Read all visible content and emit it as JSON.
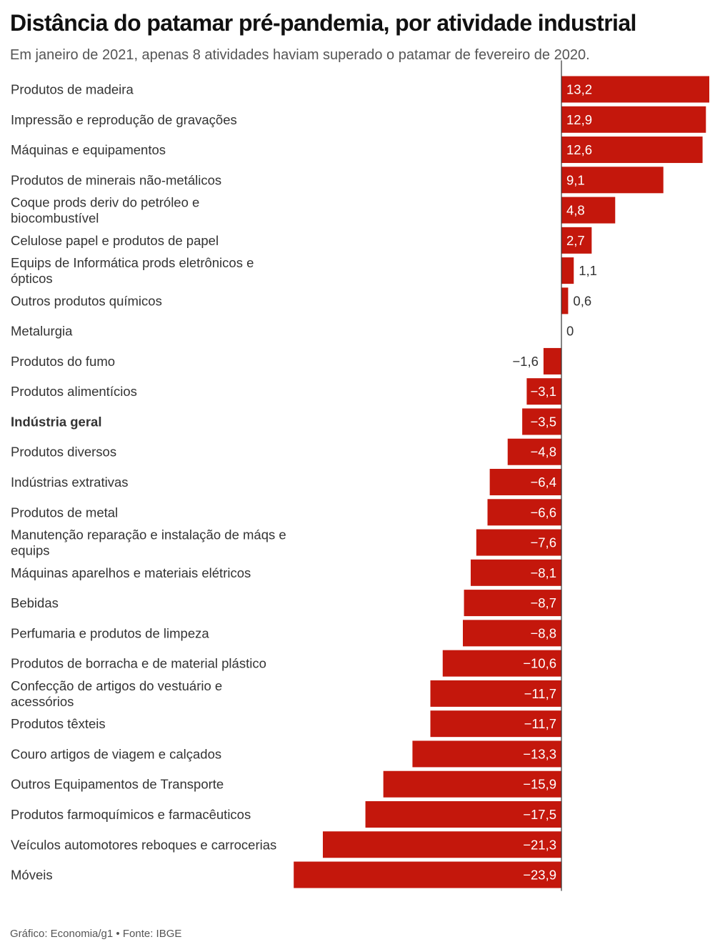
{
  "header": {
    "title": "Distância do patamar pré-pandemia, por atividade industrial",
    "subtitle": "Em janeiro de 2021, apenas 8 atividades haviam superado o patamar de fevereiro de 2020."
  },
  "footer": {
    "credit": "Gráfico: Economia/g1",
    "separator": "•",
    "source": "Fonte: IBGE"
  },
  "colors": {
    "bar": "#c4170c",
    "axis": "#333333",
    "label": "#333333",
    "value_inside": "#ffffff",
    "value_outside": "#333333"
  },
  "chart_data": {
    "type": "bar",
    "orientation": "horizontal",
    "title": "Distância do patamar pré-pandemia, por atividade industrial",
    "xlabel": "",
    "ylabel": "",
    "xlim": [
      -23.9,
      13.2
    ],
    "grid": false,
    "legend": "none",
    "highlighted_category": "Indústria geral",
    "categories": [
      "Produtos de madeira",
      "Impressão e reprodução de gravações",
      "Máquinas e equipamentos",
      "Produtos de minerais não-metálicos",
      "Coque prods deriv do petróleo e biocombustível",
      "Celulose papel e produtos de papel",
      "Equips de Informática prods eletrônicos e ópticos",
      "Outros produtos químicos",
      "Metalurgia",
      "Produtos do fumo",
      "Produtos alimentícios",
      "Indústria geral",
      "Produtos diversos",
      "Indústrias extrativas",
      "Produtos de metal",
      "Manutenção reparação e instalação de máqs e equips",
      "Máquinas aparelhos e materiais elétricos",
      "Bebidas",
      "Perfumaria e produtos de limpeza",
      "Produtos de borracha e de material plástico",
      "Confecção de artigos do vestuário e acessórios",
      "Produtos têxteis",
      "Couro artigos de viagem e calçados",
      "Outros Equipamentos de Transporte",
      "Produtos farmoquímicos e farmacêuticos",
      "Veículos automotores reboques e carrocerias",
      "Móveis"
    ],
    "values": [
      13.2,
      12.9,
      12.6,
      9.1,
      4.8,
      2.7,
      1.1,
      0.6,
      0,
      -1.6,
      -3.1,
      -3.5,
      -4.8,
      -6.4,
      -6.6,
      -7.6,
      -8.1,
      -8.7,
      -8.8,
      -10.6,
      -11.7,
      -11.7,
      -13.3,
      -15.9,
      -17.5,
      -21.3,
      -23.9
    ],
    "value_labels": [
      "13,2",
      "12,9",
      "12,6",
      "9,1",
      "4,8",
      "2,7",
      "1,1",
      "0,6",
      "0",
      "−1,6",
      "−3,1",
      "−3,5",
      "−4,8",
      "−6,4",
      "−6,6",
      "−7,6",
      "−8,1",
      "−8,7",
      "−8,8",
      "−10,6",
      "−11,7",
      "−11,7",
      "−13,3",
      "−15,9",
      "−17,5",
      "−21,3",
      "−23,9"
    ]
  }
}
